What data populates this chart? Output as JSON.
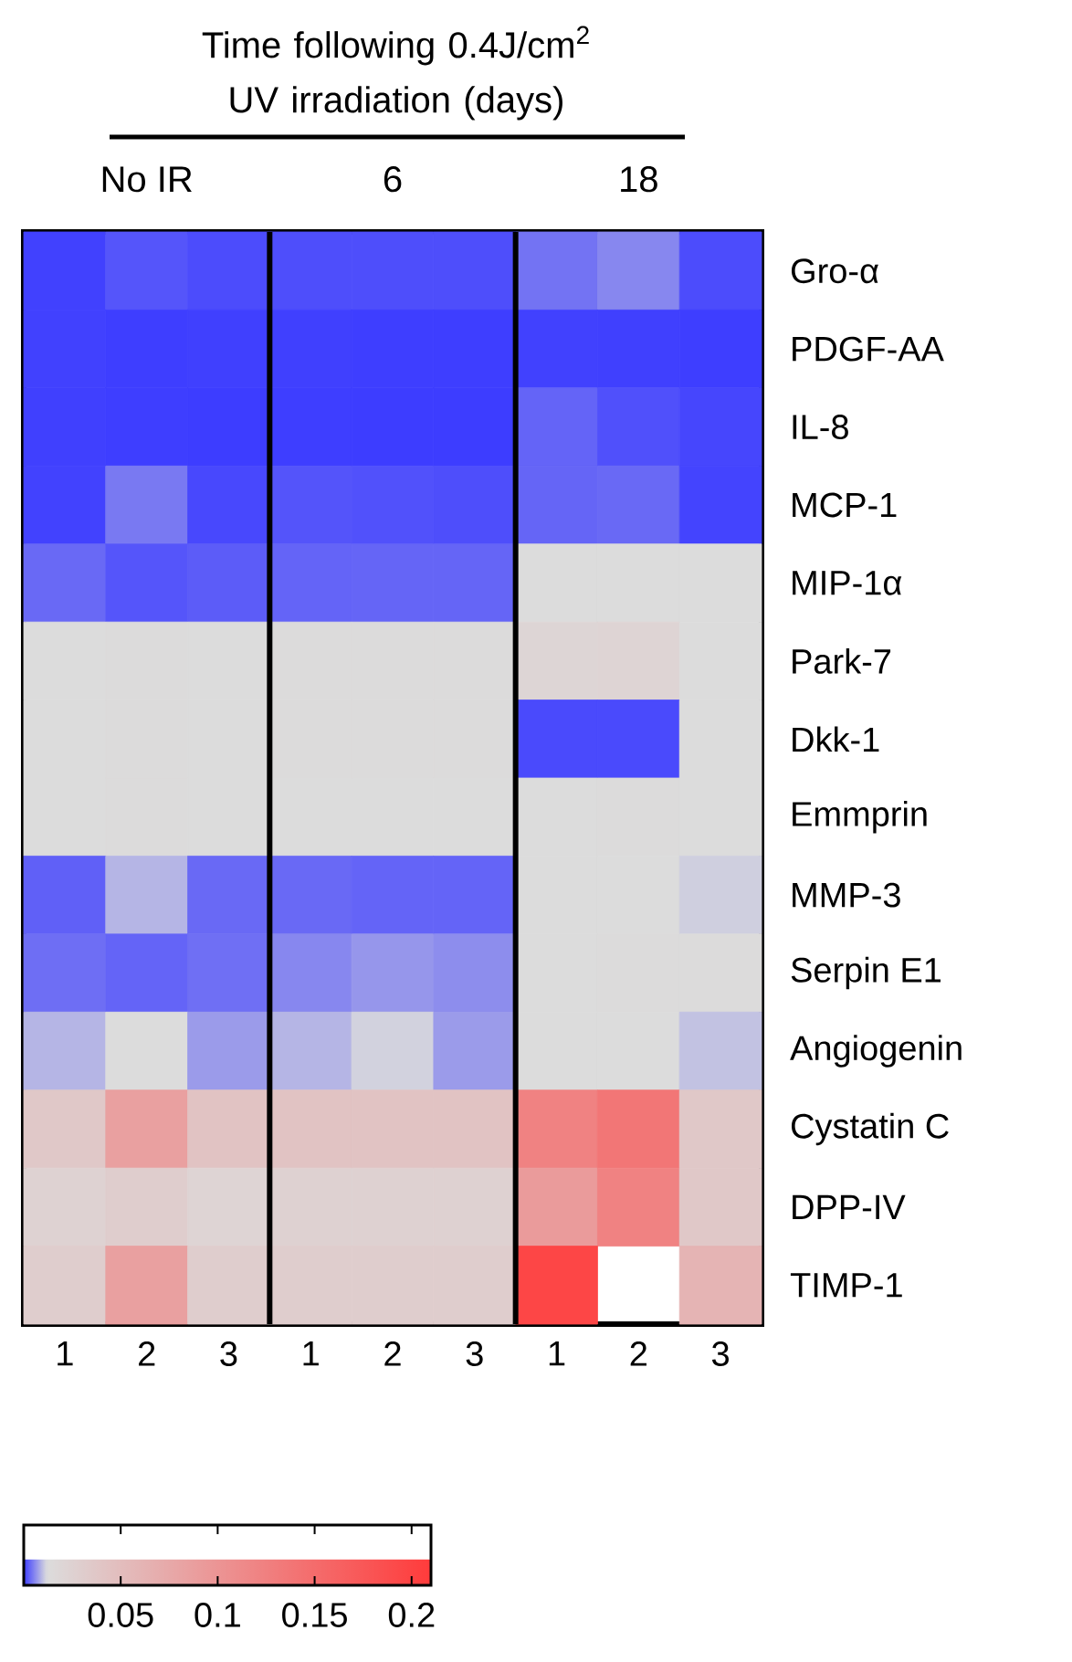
{
  "chart_data": {
    "type": "heatmap",
    "title": "Time following 0.4J/cm$^{2}$ UV irradiation (days)",
    "annotations": [
      "No IR",
      "6",
      "18"
    ],
    "categories": [
      "1",
      "2",
      "3",
      "1",
      "2",
      "3",
      "1",
      "2",
      "3"
    ],
    "y_categories": [
      "Gro-α",
      "PDGF-AA",
      "IL-8",
      "MCP-1",
      "MIP-1α",
      "Park-7",
      "Dkk-1",
      "Emmprin",
      "MMP-3",
      "Serpin E1",
      "Angiogenin",
      "Cystatin C",
      "DPP-IV",
      "TIMP-1"
    ],
    "cells": [
      [
        0.0003,
        0.0018,
        0.0011,
        0.0013,
        0.0013,
        0.0013,
        0.0041,
        0.0056,
        0.0011
      ],
      [
        0.0003,
        0.0001,
        0.0002,
        0.0002,
        0.0001,
        0.0001,
        0.0003,
        0.0002,
        0.0001
      ],
      [
        0.0002,
        0.0001,
        0.0,
        0.0001,
        0.0,
        0.0,
        0.0029,
        0.0014,
        0.0007
      ],
      [
        0.0004,
        0.0045,
        0.0008,
        0.0017,
        0.0015,
        0.0013,
        0.003,
        0.0033,
        0.0005
      ],
      [
        0.0033,
        0.0018,
        0.0023,
        0.0029,
        0.003,
        0.003,
        0.012,
        0.012,
        0.012
      ],
      [
        0.012,
        0.013,
        0.012,
        0.013,
        0.013,
        0.013,
        0.02,
        0.022,
        0.012
      ],
      [
        0.012,
        0.013,
        0.012,
        0.013,
        0.013,
        0.013,
        0.001,
        0.001,
        0.012
      ],
      [
        0.012,
        0.013,
        0.012,
        0.012,
        0.012,
        0.012,
        0.012,
        0.013,
        0.012
      ],
      [
        0.0026,
        0.009,
        0.0033,
        0.0033,
        0.0029,
        0.0029,
        0.012,
        0.012,
        0.011
      ],
      [
        0.0037,
        0.0029,
        0.0038,
        0.0056,
        0.0067,
        0.006,
        0.012,
        0.013,
        0.013
      ],
      [
        0.009,
        0.012,
        0.0071,
        0.009,
        0.0112,
        0.0071,
        0.012,
        0.012,
        0.01
      ],
      [
        0.037,
        0.086,
        0.043,
        0.043,
        0.043,
        0.043,
        0.123,
        0.137,
        0.037
      ],
      [
        0.024,
        0.03,
        0.022,
        0.025,
        0.025,
        0.025,
        0.092,
        0.123,
        0.037
      ],
      [
        0.03,
        0.086,
        0.03,
        0.03,
        0.03,
        0.03,
        0.196,
        null,
        0.061
      ]
    ],
    "clim": [
      0,
      0.21
    ],
    "cticks": [
      0.05,
      0.1,
      0.15,
      0.2
    ]
  }
}
